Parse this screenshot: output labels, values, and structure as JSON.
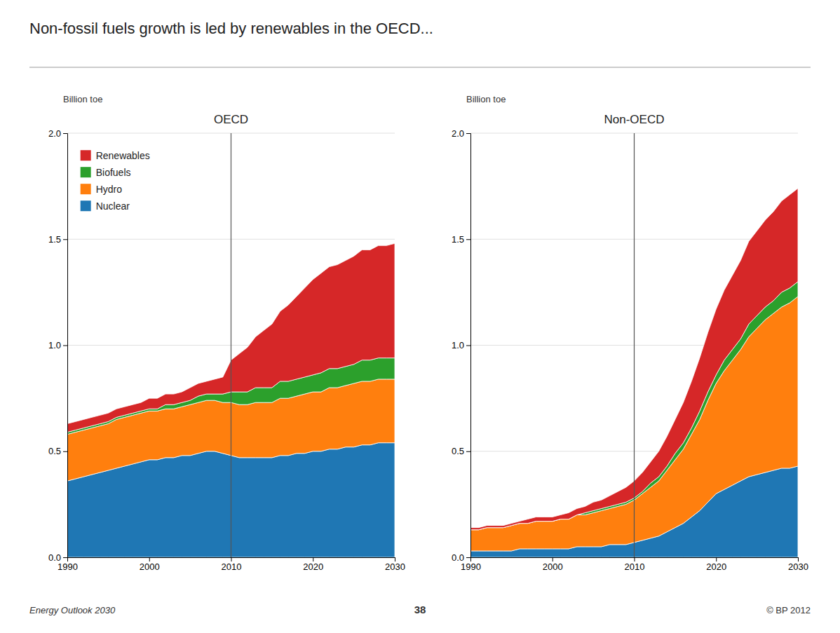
{
  "chart_data": [
    {
      "type": "area",
      "stacked": true,
      "grid": true,
      "legend": "upper left",
      "title": "Non-fossil fuels growth is led by renewables in the OECD...",
      "subtitle": "OECD",
      "ylabel": "Billion toe",
      "x": [
        1990,
        1991,
        1992,
        1993,
        1994,
        1995,
        1996,
        1997,
        1998,
        1999,
        2000,
        2001,
        2002,
        2003,
        2004,
        2005,
        2006,
        2007,
        2008,
        2009,
        2010,
        2011,
        2012,
        2013,
        2014,
        2015,
        2016,
        2017,
        2018,
        2019,
        2020,
        2021,
        2022,
        2023,
        2024,
        2025,
        2026,
        2027,
        2028,
        2029,
        2030
      ],
      "xlim": [
        1990,
        2030
      ],
      "xticks": [
        1990,
        2000,
        2010,
        2020,
        2030
      ],
      "ylim": [
        0,
        2.0
      ],
      "yticks": [
        {
          "value": 0.0,
          "label": "0.0"
        },
        {
          "value": 0.5,
          "label": "0.5"
        },
        {
          "value": 1.0,
          "label": "1.0"
        },
        {
          "value": 1.5,
          "label": "1.5"
        },
        {
          "value": 2.0,
          "label": "2.0"
        }
      ],
      "series": [
        {
          "name": "Nuclear",
          "values": [
            0.36,
            0.37,
            0.38,
            0.39,
            0.4,
            0.41,
            0.42,
            0.43,
            0.44,
            0.45,
            0.46,
            0.46,
            0.47,
            0.47,
            0.48,
            0.48,
            0.49,
            0.5,
            0.5,
            0.49,
            0.48,
            0.47,
            0.47,
            0.47,
            0.47,
            0.47,
            0.48,
            0.48,
            0.49,
            0.49,
            0.5,
            0.5,
            0.51,
            0.51,
            0.52,
            0.52,
            0.53,
            0.53,
            0.54,
            0.54,
            0.54
          ]
        },
        {
          "name": "Hydro",
          "values": [
            0.22,
            0.22,
            0.22,
            0.22,
            0.22,
            0.22,
            0.23,
            0.23,
            0.23,
            0.23,
            0.23,
            0.23,
            0.23,
            0.23,
            0.23,
            0.24,
            0.24,
            0.24,
            0.24,
            0.24,
            0.25,
            0.25,
            0.25,
            0.26,
            0.26,
            0.26,
            0.27,
            0.27,
            0.27,
            0.28,
            0.28,
            0.28,
            0.29,
            0.29,
            0.29,
            0.3,
            0.3,
            0.3,
            0.3,
            0.3,
            0.3
          ]
        },
        {
          "name": "Biofuels",
          "values": [
            0.01,
            0.01,
            0.01,
            0.01,
            0.01,
            0.01,
            0.01,
            0.01,
            0.01,
            0.01,
            0.01,
            0.01,
            0.02,
            0.02,
            0.02,
            0.02,
            0.03,
            0.03,
            0.03,
            0.04,
            0.05,
            0.06,
            0.06,
            0.07,
            0.07,
            0.07,
            0.08,
            0.08,
            0.08,
            0.08,
            0.08,
            0.09,
            0.09,
            0.09,
            0.09,
            0.09,
            0.1,
            0.1,
            0.1,
            0.1,
            0.1
          ]
        },
        {
          "name": "Renewables",
          "values": [
            0.04,
            0.04,
            0.04,
            0.04,
            0.04,
            0.04,
            0.04,
            0.04,
            0.04,
            0.04,
            0.05,
            0.05,
            0.05,
            0.05,
            0.05,
            0.06,
            0.06,
            0.06,
            0.07,
            0.08,
            0.15,
            0.18,
            0.21,
            0.24,
            0.27,
            0.3,
            0.33,
            0.36,
            0.39,
            0.42,
            0.45,
            0.47,
            0.48,
            0.49,
            0.5,
            0.51,
            0.52,
            0.52,
            0.53,
            0.53,
            0.54
          ]
        }
      ],
      "annotations": [
        {
          "x": 2010
        },
        {
          "text": "Energy Outlook 2030"
        },
        {
          "text": "38"
        },
        {
          "text": "© BP 2012"
        }
      ]
    },
    {
      "type": "area",
      "stacked": true,
      "grid": true,
      "subtitle": "Non-OECD",
      "ylabel": "Billion toe",
      "x": [
        1990,
        1991,
        1992,
        1993,
        1994,
        1995,
        1996,
        1997,
        1998,
        1999,
        2000,
        2001,
        2002,
        2003,
        2004,
        2005,
        2006,
        2007,
        2008,
        2009,
        2010,
        2011,
        2012,
        2013,
        2014,
        2015,
        2016,
        2017,
        2018,
        2019,
        2020,
        2021,
        2022,
        2023,
        2024,
        2025,
        2026,
        2027,
        2028,
        2029,
        2030
      ],
      "xlim": [
        1990,
        2030
      ],
      "xticks": [
        1990,
        2000,
        2010,
        2020,
        2030
      ],
      "ylim": [
        0,
        2.0
      ],
      "yticks": [
        {
          "value": 0.0,
          "label": "0.0"
        },
        {
          "value": 0.5,
          "label": "0.5"
        },
        {
          "value": 1.0,
          "label": "1.0"
        },
        {
          "value": 1.5,
          "label": "1.5"
        },
        {
          "value": 2.0,
          "label": "2.0"
        }
      ],
      "series": [
        {
          "name": "Nuclear",
          "values": [
            0.03,
            0.03,
            0.03,
            0.03,
            0.03,
            0.03,
            0.04,
            0.04,
            0.04,
            0.04,
            0.04,
            0.04,
            0.04,
            0.05,
            0.05,
            0.05,
            0.05,
            0.06,
            0.06,
            0.06,
            0.07,
            0.08,
            0.09,
            0.1,
            0.12,
            0.14,
            0.16,
            0.19,
            0.22,
            0.26,
            0.3,
            0.32,
            0.34,
            0.36,
            0.38,
            0.39,
            0.4,
            0.41,
            0.42,
            0.42,
            0.43
          ]
        },
        {
          "name": "Hydro",
          "values": [
            0.1,
            0.1,
            0.11,
            0.11,
            0.11,
            0.12,
            0.12,
            0.12,
            0.13,
            0.13,
            0.13,
            0.14,
            0.14,
            0.15,
            0.15,
            0.16,
            0.17,
            0.17,
            0.18,
            0.19,
            0.2,
            0.22,
            0.24,
            0.26,
            0.29,
            0.32,
            0.35,
            0.39,
            0.43,
            0.48,
            0.52,
            0.56,
            0.59,
            0.62,
            0.66,
            0.69,
            0.72,
            0.74,
            0.76,
            0.78,
            0.8
          ]
        },
        {
          "name": "Biofuels",
          "values": [
            0.0,
            0.0,
            0.0,
            0.0,
            0.0,
            0.0,
            0.0,
            0.0,
            0.0,
            0.0,
            0.0,
            0.0,
            0.0,
            0.0,
            0.01,
            0.01,
            0.01,
            0.01,
            0.01,
            0.01,
            0.01,
            0.01,
            0.02,
            0.02,
            0.02,
            0.03,
            0.03,
            0.03,
            0.04,
            0.04,
            0.04,
            0.05,
            0.05,
            0.05,
            0.06,
            0.06,
            0.06,
            0.06,
            0.07,
            0.07,
            0.07
          ]
        },
        {
          "name": "Renewables",
          "values": [
            0.01,
            0.01,
            0.01,
            0.01,
            0.01,
            0.01,
            0.01,
            0.02,
            0.02,
            0.02,
            0.02,
            0.02,
            0.03,
            0.03,
            0.03,
            0.04,
            0.04,
            0.05,
            0.06,
            0.07,
            0.08,
            0.09,
            0.1,
            0.12,
            0.14,
            0.16,
            0.19,
            0.22,
            0.25,
            0.28,
            0.31,
            0.33,
            0.35,
            0.37,
            0.39,
            0.4,
            0.41,
            0.42,
            0.43,
            0.44,
            0.44
          ]
        }
      ],
      "annotations": [
        {
          "x": 2010
        }
      ]
    }
  ]
}
